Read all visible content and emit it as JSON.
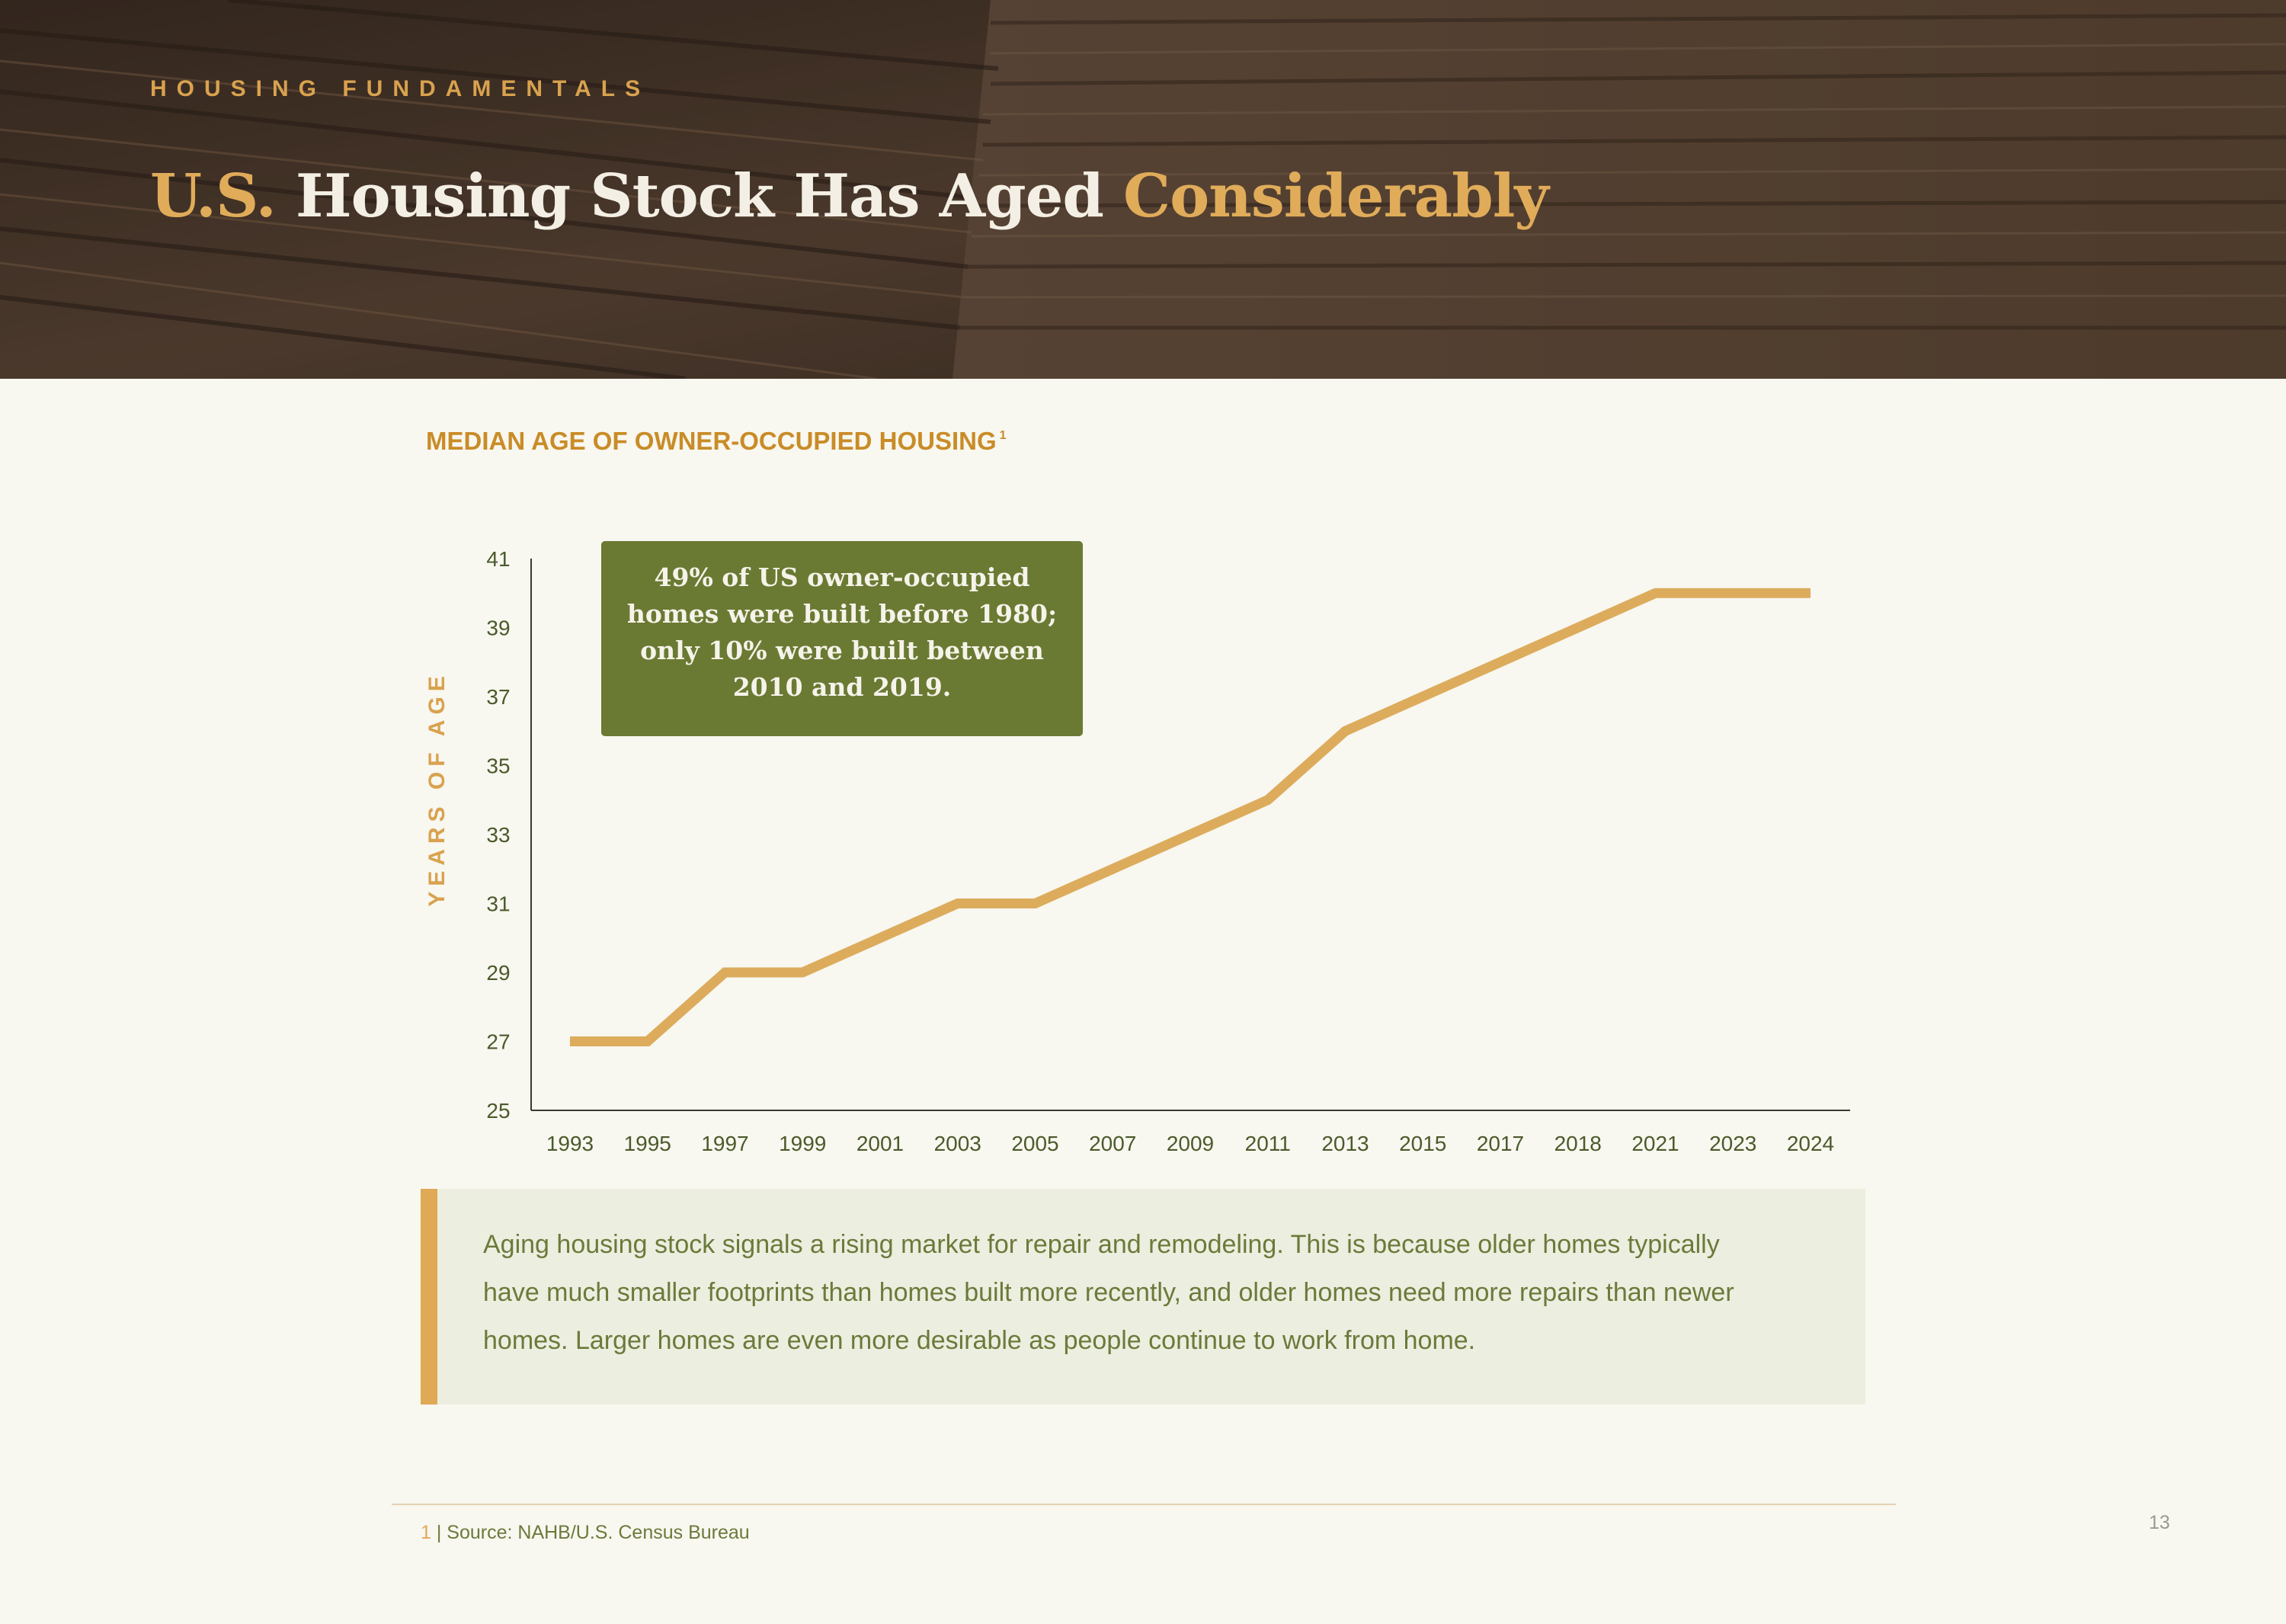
{
  "header": {
    "eyebrow": "HOUSING FUNDAMENTALS",
    "title_part1": "U.S.",
    "title_part2": "Housing Stock Has Aged",
    "title_part3": "Considerably"
  },
  "chart_title": {
    "text": "MEDIAN AGE OF OWNER-OCCUPIED HOUSING",
    "footnote_ref": "1"
  },
  "callout": {
    "text": "49% of US owner-occupied homes were built before 1980; only 10% were built between 2010 and 2019."
  },
  "chart_data": {
    "type": "line",
    "title": "MEDIAN AGE OF OWNER-OCCUPIED HOUSING",
    "xlabel": "",
    "ylabel": "YEARS OF AGE",
    "categories": [
      "1993",
      "1995",
      "1997",
      "1999",
      "2001",
      "2003",
      "2005",
      "2007",
      "2009",
      "2011",
      "2013",
      "2015",
      "2017",
      "2018",
      "2021",
      "2023",
      "2024"
    ],
    "series": [
      {
        "values": [
          27,
          27,
          29,
          29,
          30,
          31,
          31,
          32,
          33,
          34,
          36,
          37,
          38,
          39,
          40,
          40,
          40
        ]
      }
    ],
    "y_ticks": [
      25,
      27,
      29,
      31,
      33,
      35,
      37,
      39,
      41
    ],
    "ylim": [
      25,
      41
    ],
    "grid": false,
    "legend": "none"
  },
  "note": {
    "text": "Aging housing stock signals a rising market for repair and remodeling. This is because older homes typically have much smaller footprints than homes built more recently, and older homes need more repairs than newer homes. Larger homes are even more desirable as people continue to work from home."
  },
  "footer": {
    "footnote_number": "1",
    "footnote_text": "| Source: NAHB/U.S. Census Bureau",
    "page_number": "13"
  },
  "colors": {
    "line": "#dcac5c",
    "accent": "#c98c27",
    "callout_bg": "#6a7a33",
    "axis_text": "#4b5a2a",
    "background": "#f8f7f0"
  }
}
